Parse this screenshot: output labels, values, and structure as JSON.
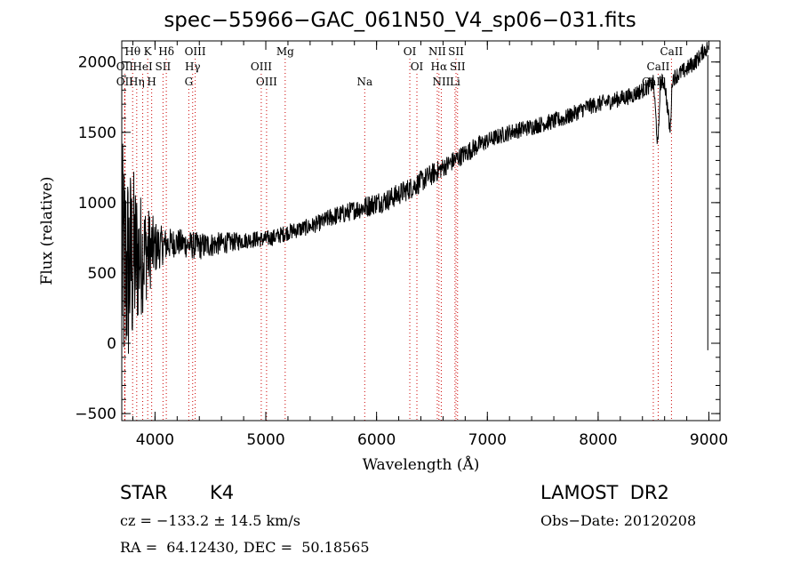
{
  "title": "spec−55966−GAC_061N50_V4_sp06−031.fits",
  "footer": {
    "class_label": "STAR",
    "subclass": "K4",
    "survey": "LAMOST  DR2",
    "cz_text": "cz = −133.2 ± 14.5 km/s",
    "obs_date": "Obs−Date: 20120208",
    "radec": "RA =  64.12430, DEC =  50.18565"
  },
  "chart_data": {
    "type": "line",
    "title": "spec−55966−GAC_061N50_V4_sp06−031.fits",
    "xlabel": "Wavelength (Å)",
    "ylabel": "Flux (relative)",
    "xlim": [
      3700,
      9100
    ],
    "ylim": [
      -550,
      2150
    ],
    "xticks": [
      4000,
      5000,
      6000,
      7000,
      8000,
      9000
    ],
    "yticks": [
      -500,
      0,
      500,
      1000,
      1500,
      2000
    ],
    "series": [
      {
        "color": "#000000",
        "x": [
          3700,
          3750,
          3800,
          3850,
          3900,
          3950,
          4000,
          4050,
          4100,
          4200,
          4300,
          4400,
          4500,
          4600,
          4700,
          4800,
          4900,
          5000,
          5100,
          5200,
          5300,
          5400,
          5500,
          5600,
          5700,
          5800,
          5900,
          6000,
          6100,
          6200,
          6300,
          6400,
          6500,
          6600,
          6700,
          6800,
          6900,
          7000,
          7100,
          7200,
          7300,
          7400,
          7500,
          7600,
          7700,
          7800,
          7900,
          8000,
          8100,
          8200,
          8300,
          8400,
          8500,
          8540,
          8560,
          8600,
          8650,
          8670,
          8700,
          8800,
          8900,
          8950,
          8990
        ],
        "y": [
          550,
          520,
          580,
          620,
          640,
          660,
          680,
          690,
          700,
          720,
          700,
          690,
          700,
          710,
          720,
          730,
          740,
          740,
          760,
          790,
          810,
          830,
          860,
          900,
          920,
          950,
          970,
          1000,
          1020,
          1060,
          1100,
          1150,
          1200,
          1250,
          1300,
          1350,
          1400,
          1440,
          1470,
          1500,
          1520,
          1540,
          1560,
          1580,
          1600,
          1640,
          1680,
          1700,
          1720,
          1740,
          1760,
          1800,
          1850,
          1380,
          1850,
          1860,
          1500,
          1880,
          1900,
          1950,
          2020,
          2080,
          2100
        ],
        "noise": [
          900,
          800,
          700,
          500,
          400,
          300,
          200,
          150,
          120,
          100,
          100,
          100,
          90,
          80,
          70,
          60,
          60,
          60,
          60,
          60,
          60,
          60,
          60,
          70,
          70,
          70,
          80,
          80,
          80,
          80,
          80,
          80,
          80,
          70,
          70,
          70,
          70,
          60,
          60,
          60,
          60,
          60,
          60,
          60,
          60,
          60,
          60,
          60,
          60,
          60,
          60,
          60,
          60,
          60,
          60,
          60,
          60,
          60,
          60,
          60,
          60,
          60,
          60
        ]
      }
    ],
    "line_markers": [
      {
        "label": "Hθ",
        "x": 3798,
        "row": 0
      },
      {
        "label": "OII",
        "x": 3727,
        "row": 1
      },
      {
        "label": "OII",
        "x": 3727,
        "row": 2
      },
      {
        "label": "K",
        "x": 3934,
        "row": 0
      },
      {
        "label": "Hδ",
        "x": 4102,
        "row": 0
      },
      {
        "label": "HeI",
        "x": 3889,
        "row": 1
      },
      {
        "label": "SII",
        "x": 4072,
        "row": 1
      },
      {
        "label": "Hη",
        "x": 3835,
        "row": 2
      },
      {
        "label": "H",
        "x": 3970,
        "row": 2
      },
      {
        "label": "OIII",
        "x": 4363,
        "row": 0
      },
      {
        "label": "Hγ",
        "x": 4340,
        "row": 1
      },
      {
        "label": "G",
        "x": 4305,
        "row": 2
      },
      {
        "label": "Mg",
        "x": 5175,
        "row": 0
      },
      {
        "label": "OIII",
        "x": 4959,
        "row": 1
      },
      {
        "label": "OIII",
        "x": 5007,
        "row": 2
      },
      {
        "label": "Na",
        "x": 5893,
        "row": 2
      },
      {
        "label": "OI",
        "x": 6300,
        "row": 0
      },
      {
        "label": "OI",
        "x": 6364,
        "row": 1
      },
      {
        "label": "NII",
        "x": 6548,
        "row": 0
      },
      {
        "label": "SII",
        "x": 6717,
        "row": 0
      },
      {
        "label": "Hα",
        "x": 6563,
        "row": 1
      },
      {
        "label": "SII",
        "x": 6731,
        "row": 1
      },
      {
        "label": "NII",
        "x": 6584,
        "row": 2
      },
      {
        "label": "Li",
        "x": 6708,
        "row": 2
      },
      {
        "label": "CaII",
        "x": 8662,
        "row": 0
      },
      {
        "label": "CaII",
        "x": 8542,
        "row": 1
      },
      {
        "label": "CaII",
        "x": 8498,
        "row": 2
      }
    ],
    "grid": false,
    "legend": "none"
  }
}
